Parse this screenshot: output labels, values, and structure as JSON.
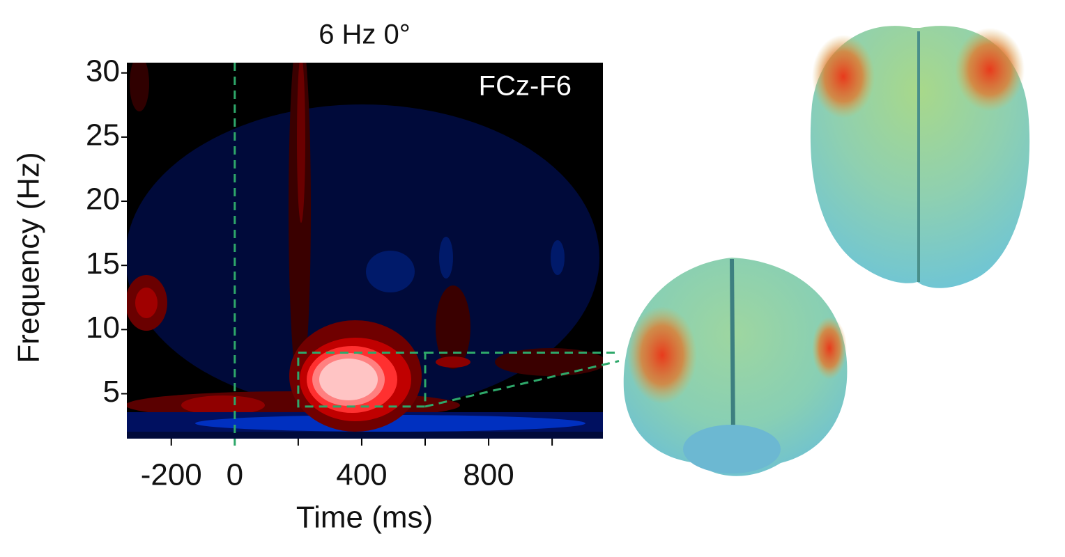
{
  "chart_data": {
    "type": "heatmap",
    "title": "6 Hz 0°",
    "annotation": "FCz-F6",
    "xlabel": "Time (ms)",
    "ylabel": "Frequency (Hz)",
    "xlim": [
      -340,
      1160
    ],
    "xticks": [
      -200,
      0,
      400,
      800
    ],
    "xminorticks": [
      200,
      600,
      1000
    ],
    "ylim": [
      1.5,
      30.8
    ],
    "yticks": [
      5,
      10,
      15,
      20,
      25,
      30
    ],
    "vline": 0,
    "roi": {
      "x": [
        200,
        600
      ],
      "y": [
        4,
        8.2
      ]
    },
    "guide_color": "#2ea86a"
  }
}
